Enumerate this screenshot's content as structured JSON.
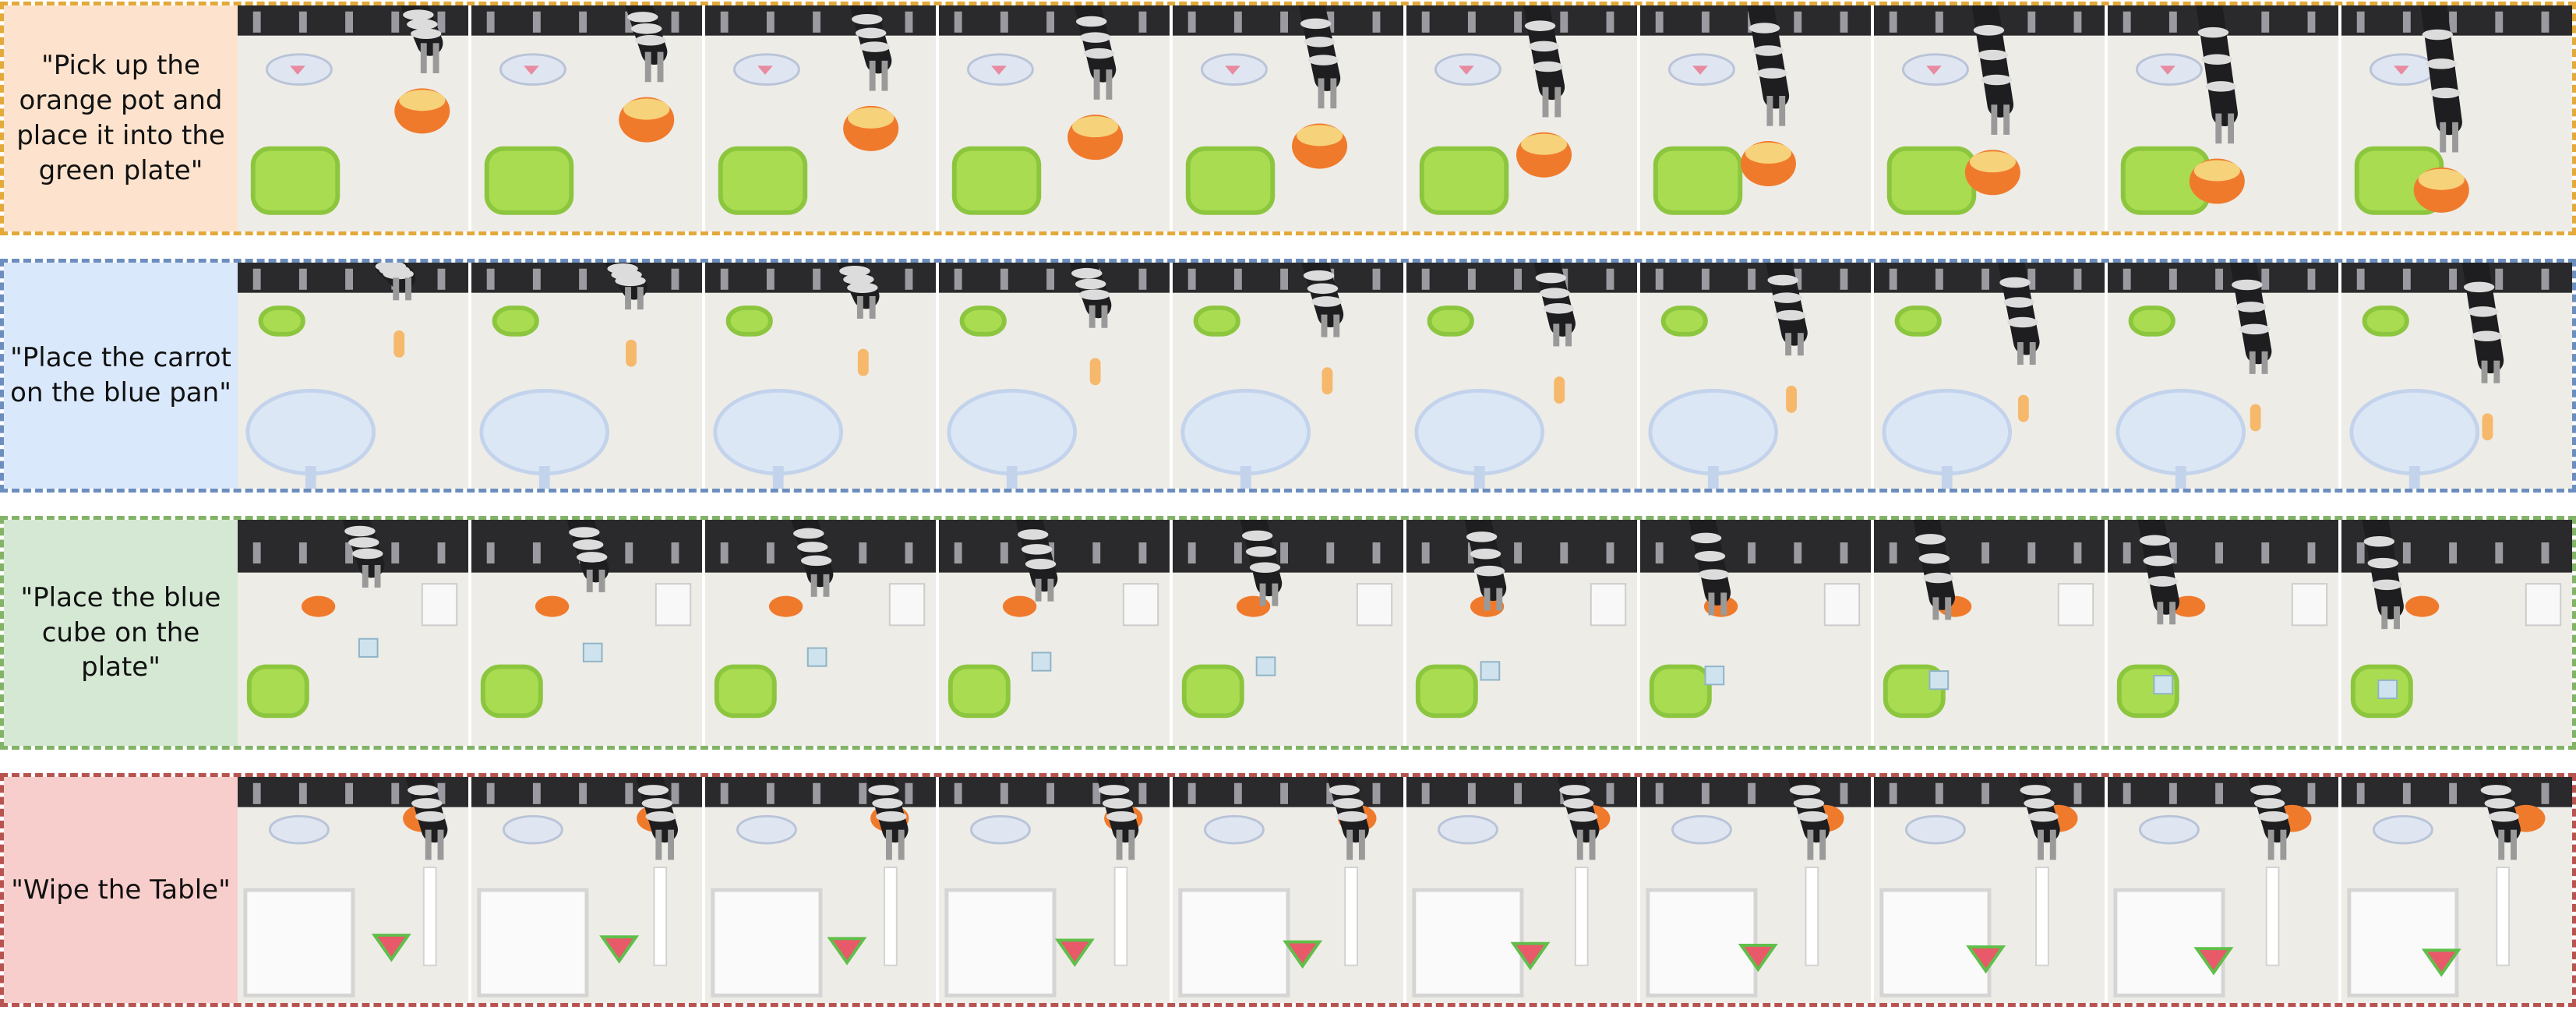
{
  "figure": {
    "rows": [
      {
        "instruction": "\"Pick up the orange pot and place it into the green plate\"",
        "border_color": "#e3a93a",
        "label_bg": "#fde3cd",
        "scene": "pot",
        "frame_count": 10
      },
      {
        "instruction": "\"Place the carrot on the blue pan\"",
        "border_color": "#6c8ebf",
        "label_bg": "#dae8fc",
        "scene": "carrot",
        "frame_count": 10
      },
      {
        "instruction": "\"Place the blue cube on the plate\"",
        "border_color": "#82b366",
        "label_bg": "#d5e8d4",
        "scene": "cube",
        "frame_count": 10
      },
      {
        "instruction": "\"Wipe the Table\"",
        "border_color": "#b85450",
        "label_bg": "#f8cecc",
        "scene": "wipe",
        "frame_count": 10
      }
    ]
  }
}
